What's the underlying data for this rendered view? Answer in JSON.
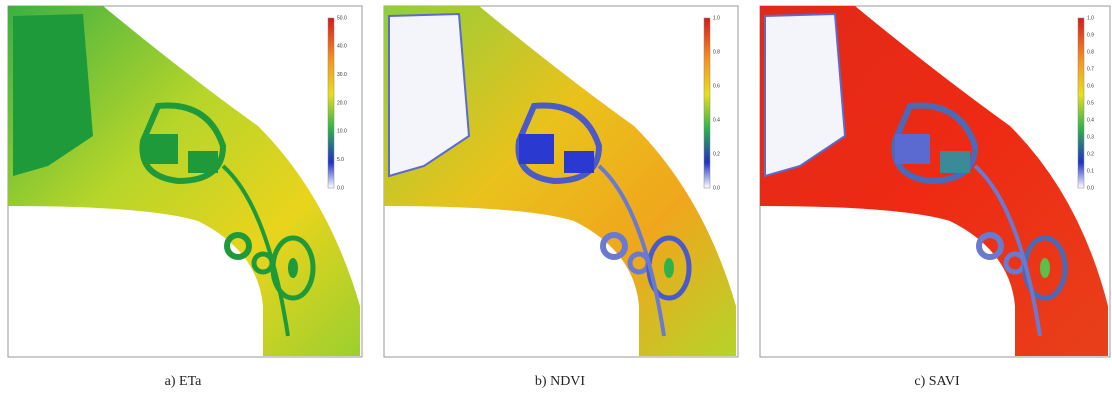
{
  "panels": [
    {
      "caption": "a) ETa",
      "colorbar_labels": [
        "50.0",
        "40.0",
        "30.0",
        "20.0",
        "10.0",
        "5.0",
        "0.0"
      ]
    },
    {
      "caption": "b) NDVI",
      "colorbar_labels": [
        "1.0",
        "0.8",
        "0.6",
        "0.4",
        "0.2",
        "0.0"
      ]
    },
    {
      "caption": "c) SAVI",
      "colorbar_labels": [
        "1.0",
        "0.9",
        "0.8",
        "0.7",
        "0.6",
        "0.5",
        "0.4",
        "0.3",
        "0.2",
        "0.1",
        "0.0"
      ]
    }
  ]
}
